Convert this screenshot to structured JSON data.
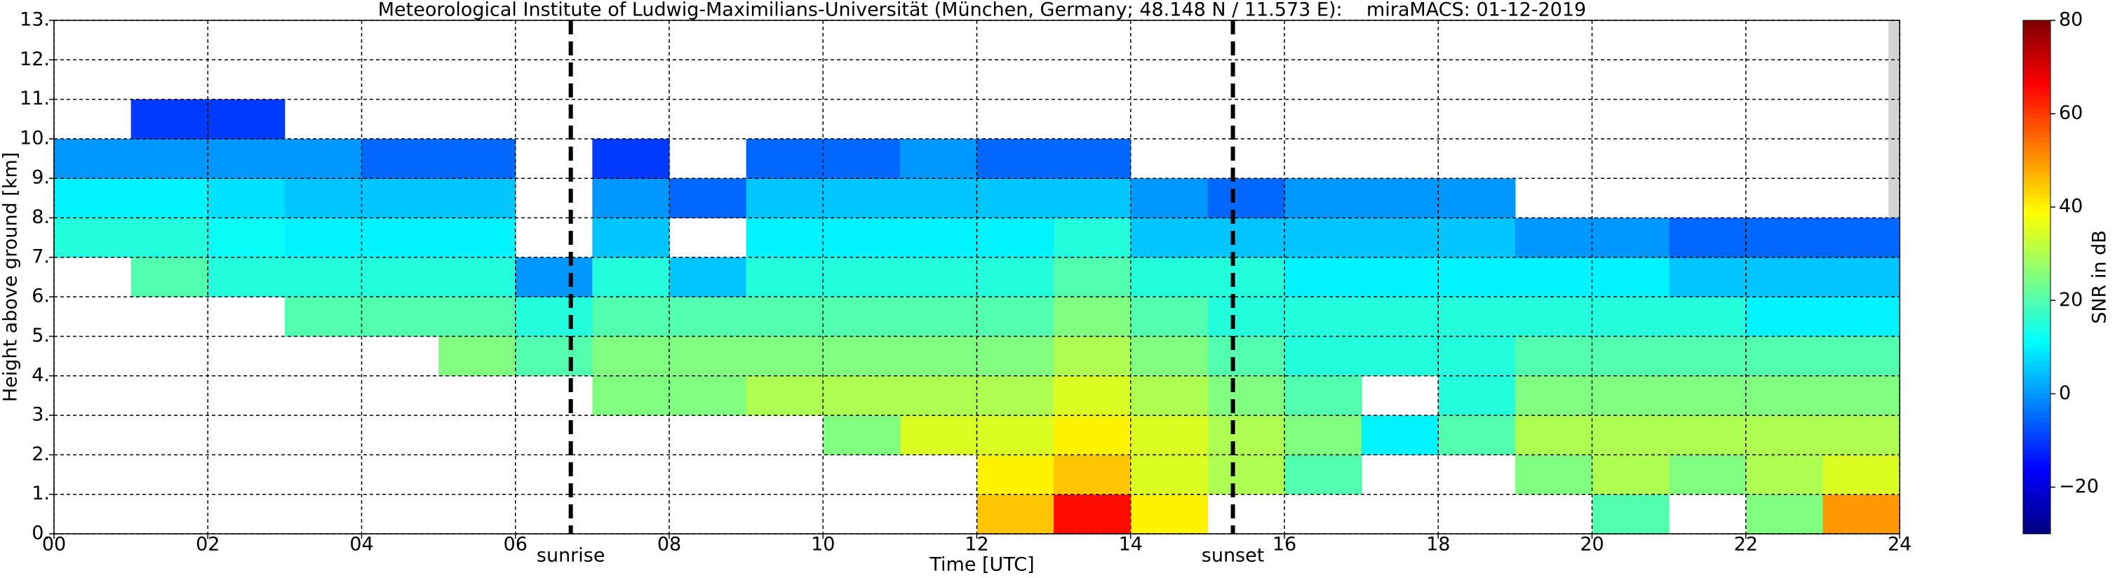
{
  "chart_data": {
    "type": "heatmap",
    "title": "Meteorological Institute of Ludwig-Maximilians-Universität (München, Germany; 48.148 N / 11.573 E):    miraMACS: 01-12-2019",
    "x_label": "Time [UTC]",
    "y_label": "Height above ground [km]",
    "colorbar_label": "SNR in dB",
    "xlim": [
      0,
      24
    ],
    "ylim": [
      0,
      13
    ],
    "clim": [
      -30,
      80
    ],
    "colormap": "jet",
    "grid": true,
    "xticks": [
      {
        "value": 0,
        "label": "00"
      },
      {
        "value": 2,
        "label": "02"
      },
      {
        "value": 4,
        "label": "04"
      },
      {
        "value": 6,
        "label": "06"
      },
      {
        "value": 8,
        "label": "08"
      },
      {
        "value": 10,
        "label": "10"
      },
      {
        "value": 12,
        "label": "12"
      },
      {
        "value": 14,
        "label": "14"
      },
      {
        "value": 16,
        "label": "16"
      },
      {
        "value": 18,
        "label": "18"
      },
      {
        "value": 20,
        "label": "20"
      },
      {
        "value": 22,
        "label": "22"
      },
      {
        "value": 24,
        "label": "24"
      }
    ],
    "yticks": [
      {
        "value": 0,
        "label": "0."
      },
      {
        "value": 1,
        "label": "1."
      },
      {
        "value": 2,
        "label": "2."
      },
      {
        "value": 3,
        "label": "3."
      },
      {
        "value": 4,
        "label": "4."
      },
      {
        "value": 5,
        "label": "5."
      },
      {
        "value": 6,
        "label": "6."
      },
      {
        "value": 7,
        "label": "7."
      },
      {
        "value": 8,
        "label": "8."
      },
      {
        "value": 9,
        "label": "9."
      },
      {
        "value": 10,
        "label": "10."
      },
      {
        "value": 11,
        "label": "11."
      },
      {
        "value": 12,
        "label": "12."
      },
      {
        "value": 13,
        "label": "13."
      }
    ],
    "cticks": [
      {
        "value": -20,
        "label": "−20"
      },
      0,
      20,
      40,
      60,
      80
    ],
    "annotations": [
      {
        "text": "sunrise",
        "x": 6.72
      },
      {
        "text": "sunset",
        "x": 15.33
      }
    ],
    "x_bins": [
      0,
      1,
      2,
      3,
      4,
      5,
      6,
      7,
      8,
      9,
      10,
      11,
      12,
      13,
      14,
      15,
      16,
      17,
      18,
      19,
      20,
      21,
      22,
      23,
      24
    ],
    "y_bins": [
      0,
      1,
      2,
      3,
      4,
      5,
      6,
      7,
      8,
      9,
      10,
      11,
      12,
      13
    ],
    "z": [
      [
        null,
        null,
        null,
        null,
        null,
        null,
        null,
        null,
        null,
        null,
        null,
        null,
        45,
        65,
        40,
        null,
        null,
        null,
        null,
        null,
        20,
        null,
        25,
        50
      ],
      [
        null,
        null,
        null,
        null,
        null,
        null,
        null,
        null,
        null,
        null,
        null,
        null,
        40,
        45,
        35,
        30,
        20,
        null,
        null,
        25,
        30,
        25,
        30,
        35
      ],
      [
        null,
        null,
        null,
        null,
        null,
        null,
        null,
        null,
        null,
        null,
        25,
        35,
        35,
        40,
        35,
        30,
        25,
        10,
        20,
        30,
        30,
        30,
        30,
        30
      ],
      [
        null,
        null,
        null,
        null,
        null,
        null,
        null,
        25,
        25,
        30,
        30,
        30,
        30,
        35,
        30,
        25,
        20,
        null,
        15,
        25,
        25,
        25,
        25,
        25
      ],
      [
        null,
        null,
        null,
        null,
        null,
        25,
        20,
        25,
        25,
        25,
        25,
        25,
        25,
        30,
        25,
        20,
        15,
        15,
        15,
        20,
        20,
        20,
        20,
        20
      ],
      [
        null,
        null,
        null,
        20,
        20,
        20,
        15,
        20,
        20,
        20,
        20,
        20,
        20,
        25,
        20,
        15,
        15,
        15,
        15,
        15,
        15,
        15,
        10,
        10
      ],
      [
        null,
        20,
        15,
        15,
        15,
        15,
        0,
        15,
        5,
        15,
        15,
        15,
        15,
        20,
        15,
        15,
        10,
        10,
        10,
        10,
        10,
        5,
        5,
        5
      ],
      [
        15,
        15,
        12,
        10,
        10,
        10,
        null,
        5,
        null,
        10,
        10,
        10,
        10,
        15,
        5,
        5,
        5,
        5,
        5,
        0,
        0,
        -5,
        -5,
        -5
      ],
      [
        10,
        10,
        8,
        5,
        5,
        5,
        null,
        0,
        -5,
        5,
        5,
        5,
        5,
        5,
        0,
        -5,
        0,
        0,
        0,
        null,
        null,
        null,
        null,
        null
      ],
      [
        0,
        0,
        0,
        0,
        -5,
        -5,
        null,
        -10,
        null,
        -5,
        -5,
        0,
        -5,
        -5,
        null,
        null,
        null,
        null,
        null,
        null,
        null,
        null,
        null,
        null
      ],
      [
        null,
        -10,
        -10,
        null,
        null,
        null,
        null,
        null,
        null,
        null,
        null,
        null,
        null,
        null,
        null,
        null,
        null,
        null,
        null,
        null,
        null,
        null,
        null,
        null
      ],
      [
        null,
        null,
        null,
        null,
        null,
        null,
        null,
        null,
        null,
        null,
        null,
        null,
        null,
        null,
        null,
        null,
        null,
        null,
        null,
        null,
        null,
        null,
        null,
        null
      ],
      [
        null,
        null,
        null,
        null,
        null,
        null,
        null,
        null,
        null,
        null,
        null,
        null,
        null,
        null,
        null,
        null,
        null,
        null,
        null,
        null,
        null,
        null,
        null,
        null
      ]
    ]
  }
}
